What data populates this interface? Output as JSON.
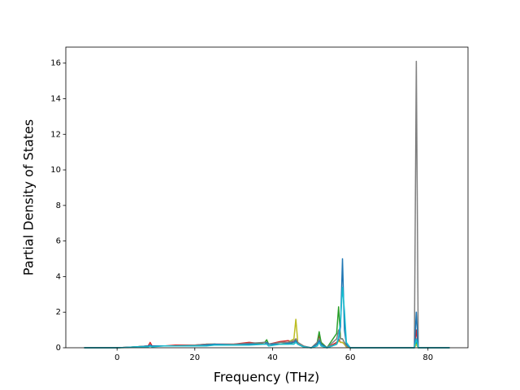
{
  "chart_data": {
    "type": "line",
    "xlabel": "Frequency (THz)",
    "ylabel": "Partial Density of States",
    "x": [
      -8.5,
      0,
      2,
      5,
      8,
      8.5,
      9,
      12,
      15,
      20,
      23,
      25,
      30,
      34,
      38,
      38.5,
      39,
      42,
      44,
      45.5,
      46,
      46.5,
      48,
      50,
      51.5,
      52,
      52.5,
      54,
      56.5,
      57,
      57.5,
      58,
      58.5,
      59,
      60,
      65,
      76.5,
      77,
      77.5,
      78,
      85.6
    ],
    "series": [
      {
        "color": "#d62728",
        "values": [
          0,
          0,
          0.02,
          0.05,
          0.1,
          0.3,
          0.1,
          0.1,
          0.15,
          0.15,
          0.2,
          0.2,
          0.2,
          0.3,
          0.2,
          0.2,
          0.2,
          0.35,
          0.4,
          0.3,
          0.5,
          0.2,
          0.05,
          0,
          0.3,
          0.7,
          0.3,
          0,
          0.3,
          0.5,
          0.3,
          0.3,
          0.2,
          0.05,
          0,
          0,
          0,
          1.0,
          0,
          0,
          0
        ]
      },
      {
        "color": "#2ca02c",
        "values": [
          0,
          0,
          0.02,
          0.05,
          0.1,
          0.1,
          0.1,
          0.1,
          0.1,
          0.1,
          0.15,
          0.2,
          0.15,
          0.2,
          0.3,
          0.45,
          0.2,
          0.2,
          0.2,
          0.3,
          0.4,
          0.2,
          0.05,
          0,
          0.3,
          0.9,
          0.3,
          0,
          0.8,
          2.3,
          0.5,
          0.5,
          0.3,
          0.1,
          0,
          0,
          0,
          0.3,
          0,
          0,
          0
        ]
      },
      {
        "color": "#bcbd22",
        "values": [
          0,
          0,
          0.01,
          0.05,
          0.1,
          0.1,
          0.1,
          0.1,
          0.1,
          0.1,
          0.2,
          0.2,
          0.15,
          0.2,
          0.2,
          0.3,
          0.2,
          0.2,
          0.3,
          0.5,
          1.6,
          0.3,
          0.05,
          0,
          0.2,
          0.4,
          0.1,
          0,
          0.2,
          0.4,
          0.3,
          0.3,
          0.2,
          0.05,
          0,
          0,
          0,
          0.2,
          0,
          0,
          0
        ]
      },
      {
        "color": "#7f7f7f",
        "values": [
          0,
          0,
          0.02,
          0.05,
          0.1,
          0.1,
          0.1,
          0.1,
          0.1,
          0.15,
          0.2,
          0.2,
          0.2,
          0.25,
          0.3,
          0.3,
          0.2,
          0.3,
          0.3,
          0.4,
          0.5,
          0.3,
          0.1,
          0,
          0.3,
          0.5,
          0.2,
          0,
          0.5,
          1.0,
          0.5,
          0.5,
          0.3,
          0.1,
          0,
          0,
          0,
          16.1,
          0,
          0,
          0
        ]
      },
      {
        "color": "#1f77b4",
        "values": [
          0,
          0,
          0.02,
          0.05,
          0.1,
          0.15,
          0.1,
          0.1,
          0.1,
          0.1,
          0.15,
          0.2,
          0.15,
          0.2,
          0.2,
          0.3,
          0.2,
          0.2,
          0.25,
          0.3,
          0.4,
          0.2,
          0.05,
          0,
          0.2,
          0.4,
          0.2,
          0,
          0.2,
          0.5,
          1.2,
          5.0,
          1.0,
          0.2,
          0,
          0,
          0,
          2.0,
          0,
          0,
          0
        ]
      },
      {
        "color": "#17becf",
        "values": [
          0,
          0,
          0.01,
          0.05,
          0.05,
          0.1,
          0.05,
          0.1,
          0.1,
          0.1,
          0.1,
          0.15,
          0.15,
          0.15,
          0.2,
          0.2,
          0.1,
          0.2,
          0.2,
          0.2,
          0.3,
          0.2,
          0.05,
          0,
          0.1,
          0.3,
          0.1,
          0,
          0.2,
          0.6,
          1.5,
          3.4,
          2.1,
          0.3,
          0,
          0,
          0,
          0.5,
          0,
          0,
          0
        ]
      }
    ],
    "xlim": [
      -13.2,
      90.3
    ],
    "ylim": [
      0,
      16.9
    ],
    "xticks": [
      0,
      20,
      40,
      60,
      80
    ],
    "yticks": [
      0,
      2,
      4,
      6,
      8,
      10,
      12,
      14,
      16
    ]
  }
}
